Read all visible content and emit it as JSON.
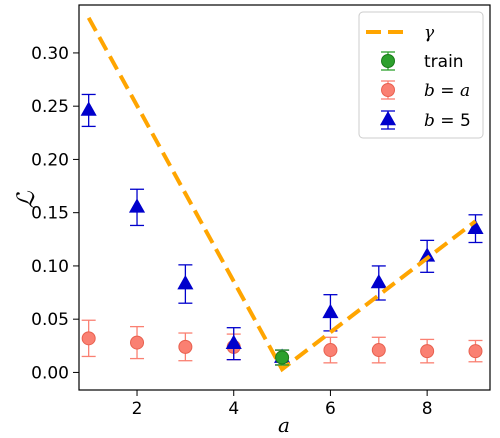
{
  "chart_data": {
    "type": "scatter",
    "xlabel": "a",
    "ylabel": "ℒ",
    "xlim": [
      0.8,
      9.3
    ],
    "ylim": [
      -0.0165,
      0.345
    ],
    "xticks": [
      2,
      4,
      6,
      8
    ],
    "yticks": [
      0.0,
      0.05,
      0.1,
      0.15,
      0.2,
      0.25,
      0.3
    ],
    "ytick_labels": [
      "0.00",
      "0.05",
      "0.10",
      "0.15",
      "0.20",
      "0.25",
      "0.30"
    ],
    "grid": false,
    "legend_position": "top-right",
    "series": [
      {
        "name": "γ",
        "kind": "line",
        "style": "dashed",
        "color": "#ffa500",
        "x": [
          1,
          5,
          9
        ],
        "y": [
          0.333,
          0.003,
          0.142
        ]
      },
      {
        "name": "train",
        "kind": "errorbar",
        "marker": "circle",
        "color": "#2ca02c",
        "edge": "#1a7a1a",
        "x": [
          5
        ],
        "y": [
          0.014
        ],
        "err": [
          0.007
        ]
      },
      {
        "name": "b = a",
        "kind": "errorbar",
        "marker": "circle",
        "color": "#fa8072",
        "edge": "#e8604f",
        "x": [
          1,
          2,
          3,
          4,
          5,
          6,
          7,
          8,
          9
        ],
        "y": [
          0.032,
          0.028,
          0.024,
          0.024,
          0.014,
          0.021,
          0.021,
          0.02,
          0.02
        ],
        "err": [
          0.017,
          0.015,
          0.013,
          0.012,
          0.007,
          0.012,
          0.012,
          0.011,
          0.01
        ]
      },
      {
        "name": "b = 5",
        "kind": "errorbar",
        "marker": "triangle",
        "color": "#0000cc",
        "edge": "#0000cc",
        "x": [
          1,
          2,
          3,
          4,
          5,
          6,
          7,
          8,
          9
        ],
        "y": [
          0.246,
          0.155,
          0.083,
          0.027,
          0.014,
          0.056,
          0.084,
          0.109,
          0.135
        ],
        "err": [
          0.015,
          0.017,
          0.018,
          0.015,
          0.007,
          0.017,
          0.016,
          0.015,
          0.013
        ]
      }
    ],
    "legend": [
      {
        "label_prefix": "",
        "label_math": "γ",
        "label_suffix": "",
        "series": 0
      },
      {
        "label_prefix": "train",
        "label_math": "",
        "label_suffix": "",
        "series": 1
      },
      {
        "label_prefix": "",
        "label_math": "b",
        "label_suffix": " = a",
        "series": 2
      },
      {
        "label_prefix": "",
        "label_math": "b",
        "label_suffix": " = 5",
        "series": 3
      }
    ]
  }
}
